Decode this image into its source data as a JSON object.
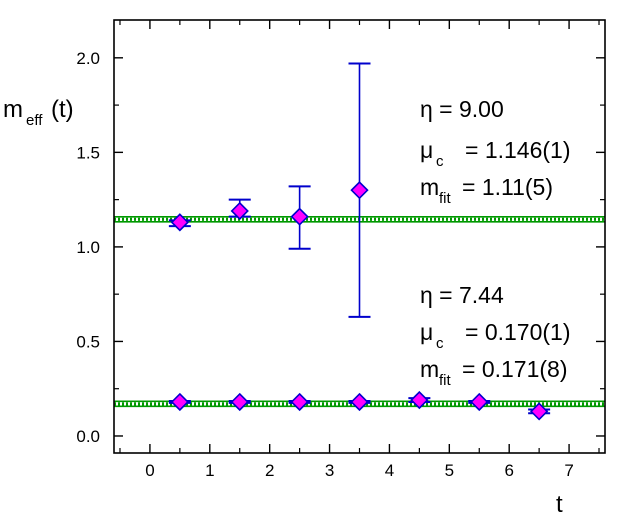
{
  "chart_data": {
    "type": "scatter",
    "xlabel": "t",
    "ylabel": {
      "main": "m",
      "sub": "eff",
      "suffix": "(t)"
    },
    "xlim": [
      -0.6,
      7.6
    ],
    "ylim": [
      -0.09,
      2.2
    ],
    "xticks": [
      0,
      1,
      2,
      3,
      4,
      5,
      6,
      7
    ],
    "yticks": [
      0.0,
      0.5,
      1.0,
      1.5,
      2.0
    ],
    "ytick_labels": [
      "0.0",
      "0.5",
      "1.0",
      "1.5",
      "2.0"
    ],
    "grid": false,
    "colors": {
      "marker_fill": "#ff00ff",
      "marker_edge": "#0000cc",
      "errorbar": "#0000cc",
      "fit_band": "#009900"
    },
    "series": [
      {
        "points": [
          {
            "x": 0.5,
            "y": 1.13,
            "err_low": 1.11,
            "err_high": 1.14
          },
          {
            "x": 1.5,
            "y": 1.19,
            "err_low": 1.16,
            "err_high": 1.25
          },
          {
            "x": 2.5,
            "y": 1.16,
            "err_low": 0.99,
            "err_high": 1.32
          },
          {
            "x": 3.5,
            "y": 1.3,
            "err_low": 0.63,
            "err_high": 1.97
          }
        ],
        "fit": {
          "y": 1.146
        }
      },
      {
        "points": [
          {
            "x": 0.5,
            "y": 0.18,
            "err_low": 0.175,
            "err_high": 0.185
          },
          {
            "x": 1.5,
            "y": 0.18,
            "err_low": 0.175,
            "err_high": 0.185
          },
          {
            "x": 2.5,
            "y": 0.18,
            "err_low": 0.175,
            "err_high": 0.185
          },
          {
            "x": 3.5,
            "y": 0.18,
            "err_low": 0.175,
            "err_high": 0.185
          },
          {
            "x": 4.5,
            "y": 0.19,
            "err_low": 0.18,
            "err_high": 0.2
          },
          {
            "x": 5.5,
            "y": 0.18,
            "err_low": 0.175,
            "err_high": 0.185
          },
          {
            "x": 6.5,
            "y": 0.13,
            "err_low": 0.12,
            "err_high": 0.14
          }
        ],
        "fit": {
          "y": 0.17
        }
      }
    ],
    "annotations": [
      {
        "lines": [
          {
            "main": "η = 9.00",
            "sub": "",
            "rest": ""
          },
          {
            "main": "μ",
            "sub": "c",
            "rest": "= 1.146(1)"
          },
          {
            "main": "m",
            "sub": "fit",
            "rest": "= 1.11(5)"
          }
        ]
      },
      {
        "lines": [
          {
            "main": "η = 7.44",
            "sub": "",
            "rest": ""
          },
          {
            "main": "μ",
            "sub": "c",
            "rest": "= 0.170(1)"
          },
          {
            "main": "m",
            "sub": "fit",
            "rest": "= 0.171(8)"
          }
        ]
      }
    ]
  }
}
